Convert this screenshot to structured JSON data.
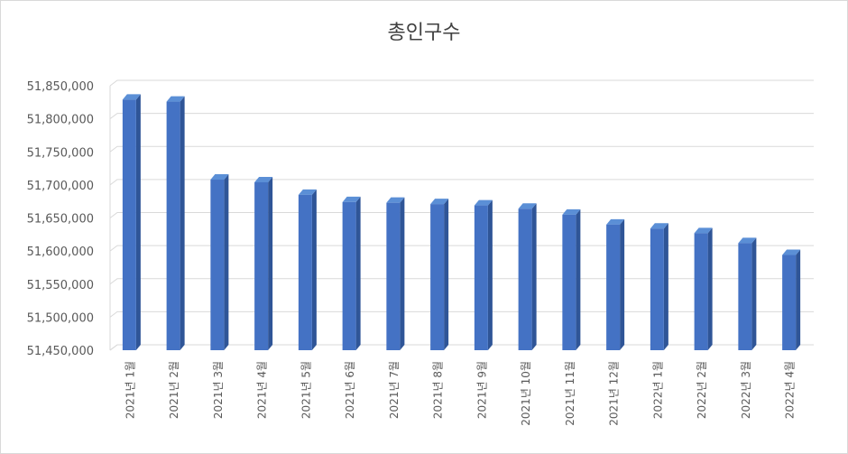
{
  "chart_data": {
    "type": "bar",
    "title": "총인구수",
    "xlabel": "",
    "ylabel": "",
    "categories": [
      "2021년 1월",
      "2021년 2월",
      "2021년 3월",
      "2021년 4월",
      "2021년 5월",
      "2021년 6월",
      "2021년 7월",
      "2021년 8월",
      "2021년 9월",
      "2021년 10월",
      "2021년 11월",
      "2021년 12월",
      "2022년 1월",
      "2022년 2월",
      "2022년 3월",
      "2022년 4월"
    ],
    "values": [
      51829000,
      51826000,
      51708000,
      51704000,
      51685000,
      51674000,
      51673000,
      51671000,
      51669000,
      51664000,
      51655000,
      51640000,
      51634000,
      51627000,
      51612000,
      51594000
    ],
    "ylim": [
      51450000,
      51850000
    ],
    "yticks": [
      "51,450,000",
      "51,500,000",
      "51,550,000",
      "51,600,000",
      "51,650,000",
      "51,700,000",
      "51,750,000",
      "51,800,000",
      "51,850,000"
    ],
    "grid": true,
    "colors": {
      "bar_front": "#4472c4",
      "bar_side": "#2f5597",
      "bar_top": "#5b8fd6",
      "grid": "#d9d9d9"
    }
  }
}
